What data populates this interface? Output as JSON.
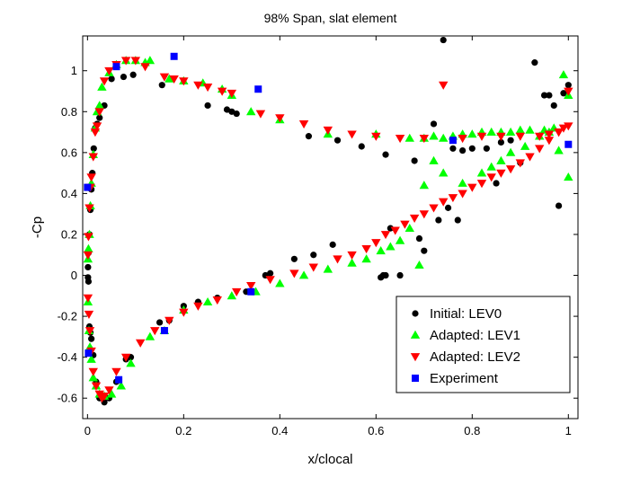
{
  "chart_data": {
    "type": "scatter",
    "title": "98% Span, slat element",
    "xlabel": "x/clocal",
    "ylabel": "-Cp",
    "xlim": [
      -0.01,
      1.02
    ],
    "ylim": [
      -0.7,
      1.17
    ],
    "xticks": [
      0,
      0.2,
      0.4,
      0.6,
      0.8,
      1
    ],
    "yticks": [
      -0.6,
      -0.4,
      -0.2,
      0,
      0.2,
      0.4,
      0.6,
      0.8,
      1
    ],
    "xtick_labels": [
      "0",
      "0.2",
      "0.4",
      "0.6",
      "0.8",
      "1"
    ],
    "ytick_labels": [
      "-0.6",
      "-0.4",
      "-0.2",
      "0",
      "0.2",
      "0.4",
      "0.6",
      "0.8",
      "1"
    ],
    "legend_position": "bottom-right",
    "series": [
      {
        "name": "Initial: LEV0",
        "marker": "circle",
        "color": "#000000",
        "x": [
          0.001,
          0.002,
          0.004,
          0.006,
          0.008,
          0.01,
          0.013,
          0.016,
          0.02,
          0.025,
          0.035,
          0.05,
          0.075,
          0.095,
          0.155,
          0.25,
          0.29,
          0.3,
          0.31,
          0.46,
          0.52,
          0.57,
          0.62,
          0.68,
          0.72,
          0.74,
          0.76,
          0.78,
          0.8,
          0.83,
          0.86,
          0.88,
          0.9,
          0.93,
          0.95,
          0.96,
          0.97,
          0.99,
          1.0,
          0.001,
          0.002,
          0.004,
          0.006,
          0.008,
          0.012,
          0.018,
          0.025,
          0.035,
          0.045,
          0.06,
          0.08,
          0.09,
          0.15,
          0.17,
          0.2,
          0.23,
          0.27,
          0.33,
          0.37,
          0.38,
          0.43,
          0.47,
          0.51,
          0.61,
          0.615,
          0.62,
          0.63,
          0.65,
          0.69,
          0.7,
          0.73,
          0.75,
          0.77,
          0.85,
          0.9,
          0.98
        ],
        "y": [
          0.04,
          0.11,
          0.2,
          0.32,
          0.42,
          0.5,
          0.62,
          0.72,
          0.74,
          0.77,
          0.83,
          0.96,
          0.97,
          0.98,
          0.93,
          0.83,
          0.81,
          0.8,
          0.79,
          0.68,
          0.66,
          0.63,
          0.59,
          0.56,
          0.74,
          1.15,
          0.62,
          0.61,
          0.62,
          0.62,
          0.65,
          0.66,
          0.69,
          1.04,
          0.88,
          0.88,
          0.83,
          0.89,
          0.93,
          -0.01,
          -0.03,
          -0.25,
          -0.28,
          -0.31,
          -0.39,
          -0.52,
          -0.6,
          -0.62,
          -0.6,
          -0.52,
          -0.41,
          -0.4,
          -0.23,
          -0.22,
          -0.15,
          -0.13,
          -0.11,
          -0.08,
          0.0,
          0.01,
          0.08,
          0.1,
          0.15,
          -0.01,
          0.0,
          0.0,
          0.23,
          0.0,
          0.18,
          0.12,
          0.27,
          0.33,
          0.27,
          0.45,
          0.55,
          0.34
        ]
      },
      {
        "name": "Adapted: LEV1",
        "marker": "triangle-up",
        "color": "#00ff00",
        "x": [
          0.001,
          0.002,
          0.004,
          0.006,
          0.008,
          0.012,
          0.016,
          0.02,
          0.025,
          0.03,
          0.045,
          0.06,
          0.08,
          0.1,
          0.12,
          0.13,
          0.17,
          0.2,
          0.24,
          0.28,
          0.3,
          0.34,
          0.4,
          0.5,
          0.6,
          0.67,
          0.7,
          0.72,
          0.74,
          0.76,
          0.78,
          0.8,
          0.82,
          0.84,
          0.86,
          0.88,
          0.9,
          0.92,
          0.95,
          0.97,
          0.99,
          1.0,
          0.001,
          0.003,
          0.005,
          0.008,
          0.012,
          0.018,
          0.025,
          0.035,
          0.05,
          0.07,
          0.09,
          0.13,
          0.16,
          0.2,
          0.25,
          0.3,
          0.35,
          0.4,
          0.45,
          0.5,
          0.55,
          0.58,
          0.61,
          0.63,
          0.65,
          0.67,
          0.69,
          0.7,
          0.72,
          0.74,
          0.78,
          0.82,
          0.84,
          0.86,
          0.88,
          0.91,
          0.94,
          0.96,
          0.98,
          1.0
        ],
        "y": [
          0.08,
          0.13,
          0.2,
          0.34,
          0.45,
          0.59,
          0.72,
          0.8,
          0.83,
          0.92,
          0.99,
          1.03,
          1.05,
          1.05,
          1.04,
          1.05,
          0.96,
          0.95,
          0.94,
          0.91,
          0.88,
          0.8,
          0.76,
          0.69,
          0.69,
          0.67,
          0.67,
          0.68,
          0.67,
          0.68,
          0.69,
          0.69,
          0.7,
          0.7,
          0.7,
          0.7,
          0.71,
          0.71,
          0.71,
          0.72,
          0.98,
          0.88,
          -0.13,
          -0.27,
          -0.35,
          -0.41,
          -0.5,
          -0.54,
          -0.58,
          -0.59,
          -0.58,
          -0.54,
          -0.43,
          -0.3,
          -0.27,
          -0.17,
          -0.13,
          -0.1,
          -0.08,
          -0.04,
          0.0,
          0.03,
          0.06,
          0.08,
          0.12,
          0.14,
          0.17,
          0.23,
          0.05,
          0.44,
          0.56,
          0.5,
          0.45,
          0.5,
          0.53,
          0.56,
          0.6,
          0.63,
          0.68,
          0.7,
          0.61,
          0.48
        ]
      },
      {
        "name": "Adapted: LEV2",
        "marker": "triangle-down",
        "color": "#ff0000",
        "x": [
          0.001,
          0.002,
          0.004,
          0.006,
          0.008,
          0.012,
          0.016,
          0.02,
          0.025,
          0.035,
          0.045,
          0.06,
          0.08,
          0.1,
          0.12,
          0.16,
          0.18,
          0.2,
          0.23,
          0.25,
          0.28,
          0.3,
          0.36,
          0.4,
          0.45,
          0.5,
          0.55,
          0.6,
          0.65,
          0.7,
          0.74,
          0.78,
          0.82,
          0.86,
          0.9,
          0.94,
          0.96,
          0.98,
          1.0,
          0.001,
          0.003,
          0.005,
          0.008,
          0.012,
          0.018,
          0.025,
          0.03,
          0.035,
          0.045,
          0.06,
          0.08,
          0.11,
          0.14,
          0.17,
          0.2,
          0.23,
          0.27,
          0.31,
          0.34,
          0.38,
          0.43,
          0.47,
          0.52,
          0.55,
          0.58,
          0.6,
          0.62,
          0.64,
          0.66,
          0.68,
          0.7,
          0.72,
          0.74,
          0.76,
          0.78,
          0.8,
          0.82,
          0.84,
          0.86,
          0.88,
          0.9,
          0.92,
          0.94,
          0.96,
          0.98,
          0.99,
          1.0
        ],
        "y": [
          0.1,
          0.19,
          0.33,
          0.43,
          0.48,
          0.58,
          0.7,
          0.73,
          0.8,
          0.95,
          1.0,
          1.03,
          1.05,
          1.05,
          1.02,
          0.97,
          0.96,
          0.95,
          0.93,
          0.92,
          0.9,
          0.89,
          0.79,
          0.77,
          0.74,
          0.71,
          0.69,
          0.68,
          0.67,
          0.67,
          0.93,
          0.67,
          0.68,
          0.68,
          0.68,
          0.68,
          0.69,
          0.7,
          0.73,
          -0.11,
          -0.19,
          -0.27,
          -0.37,
          -0.47,
          -0.54,
          -0.58,
          -0.6,
          -0.59,
          -0.56,
          -0.47,
          -0.4,
          -0.33,
          -0.27,
          -0.22,
          -0.18,
          -0.15,
          -0.12,
          -0.08,
          -0.05,
          -0.02,
          0.01,
          0.04,
          0.08,
          0.1,
          0.13,
          0.16,
          0.2,
          0.22,
          0.25,
          0.28,
          0.3,
          0.33,
          0.36,
          0.38,
          0.4,
          0.43,
          0.45,
          0.48,
          0.5,
          0.52,
          0.55,
          0.58,
          0.62,
          0.66,
          0.7,
          0.72,
          0.9
        ]
      },
      {
        "name": "Experiment",
        "marker": "square",
        "color": "#0000ff",
        "x": [
          0.0,
          0.002,
          0.06,
          0.065,
          0.16,
          0.18,
          0.34,
          0.355,
          0.76,
          1.0
        ],
        "y": [
          0.43,
          -0.38,
          1.02,
          -0.51,
          -0.27,
          1.07,
          -0.08,
          0.91,
          0.66,
          0.64
        ]
      }
    ]
  }
}
